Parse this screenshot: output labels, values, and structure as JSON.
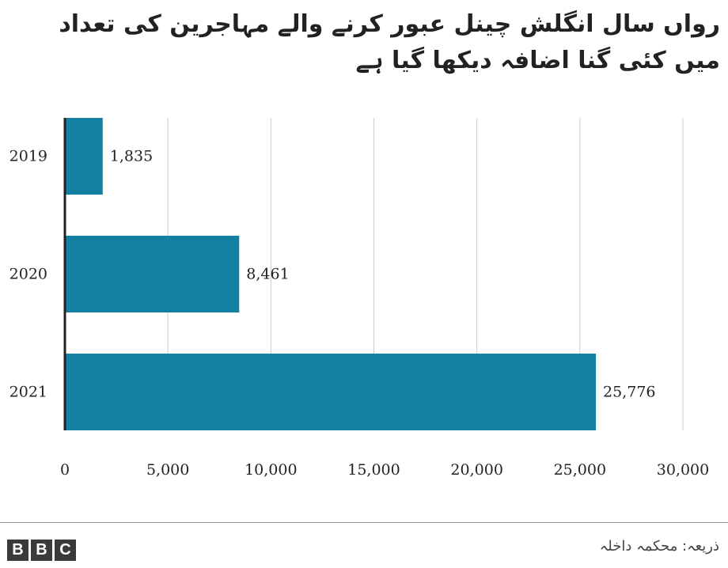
{
  "title": "رواں سال انگلش چینل عبور کرنے والے مہاجرین کی تعداد میں کئی گنا اضافہ دیکھا گیا ہے",
  "source": "ذریعہ: محکمہ داخلہ",
  "logo": {
    "letters": [
      "B",
      "B",
      "C"
    ]
  },
  "colors": {
    "bar": "#1380a1",
    "grid": "#cccccc",
    "axis": "#222222"
  },
  "chart_data": {
    "type": "bar",
    "orientation": "horizontal",
    "categories": [
      "2019",
      "2020",
      "2021"
    ],
    "values": [
      1835,
      8461,
      25776
    ],
    "value_labels": [
      "1,835",
      "8,461",
      "25,776"
    ],
    "xticks": [
      0,
      5000,
      10000,
      15000,
      20000,
      25000,
      30000
    ],
    "xtick_labels": [
      "0",
      "5,000",
      "10,000",
      "15,000",
      "20,000",
      "25,000",
      "30,000"
    ],
    "xlim": [
      0,
      30000
    ],
    "grid": true,
    "title": "رواں سال انگلش چینل عبور کرنے والے مہاجرین کی تعداد میں کئی گنا اضافہ دیکھا گیا ہے",
    "xlabel": "",
    "ylabel": ""
  }
}
